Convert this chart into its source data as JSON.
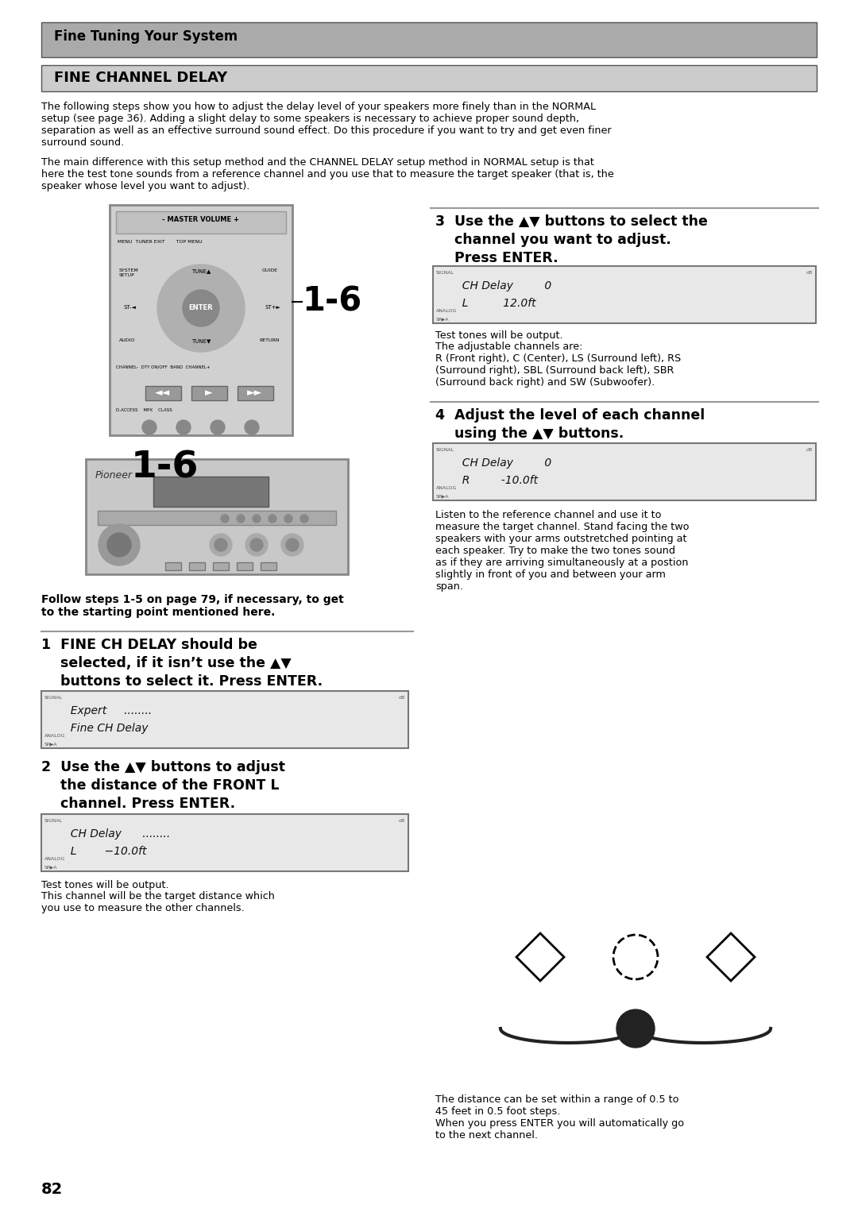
{
  "page_bg": "#ffffff",
  "header_bg": "#aaaaaa",
  "header_text": "Fine Tuning Your System",
  "header_text_color": "#000000",
  "section_bg": "#cccccc",
  "section_title": "FINE CHANNEL DELAY",
  "section_title_color": "#000000",
  "body_text_color": "#000000",
  "paragraph1": "The following steps show you how to adjust the delay level of your speakers more finely than in the NORMAL\nsetup (see page 36). Adding a slight delay to some speakers is necessary to achieve proper sound depth,\nseparation as well as an effective surround sound effect. Do this procedure if you want to try and get even finer\nsurround sound.",
  "paragraph2": "The main difference with this setup method and the CHANNEL DELAY setup method in NORMAL setup is that\nhere the test tone sounds from a reference channel and you use that to measure the target speaker (that is, the\nspeaker whose level you want to adjust).",
  "step2_caption1": "Test tones will be output.",
  "step2_caption2": "This channel will be the target distance which\nyou use to measure the other channels.",
  "step3_caption1": "Test tones will be output.",
  "step3_caption2": "The adjustable channels are:\nR (Front right), C (Center), LS (Surround left), RS\n(Surround right), SBL (Surround back left), SBR\n(Surround back right) and SW (Subwoofer).",
  "step4_caption1": "Listen to the reference channel and use it to\nmeasure the target channel. Stand facing the two\nspeakers with your arms outstretched pointing at\neach speaker. Try to make the two tones sound\nas if they are arriving simultaneously at a postion\nslightly in front of you and between your arm\nspan.",
  "bottom_caption1": "The distance can be set within a range of 0.5 to\n45 feet in 0.5 foot steps.",
  "bottom_caption2": "When you press ENTER you will automatically go\nto the next channel.",
  "follow_text": "Follow steps 1-5 on page 79, if necessary, to get\nto the starting point mentioned here.",
  "page_number": "82",
  "divider_color": "#888888"
}
